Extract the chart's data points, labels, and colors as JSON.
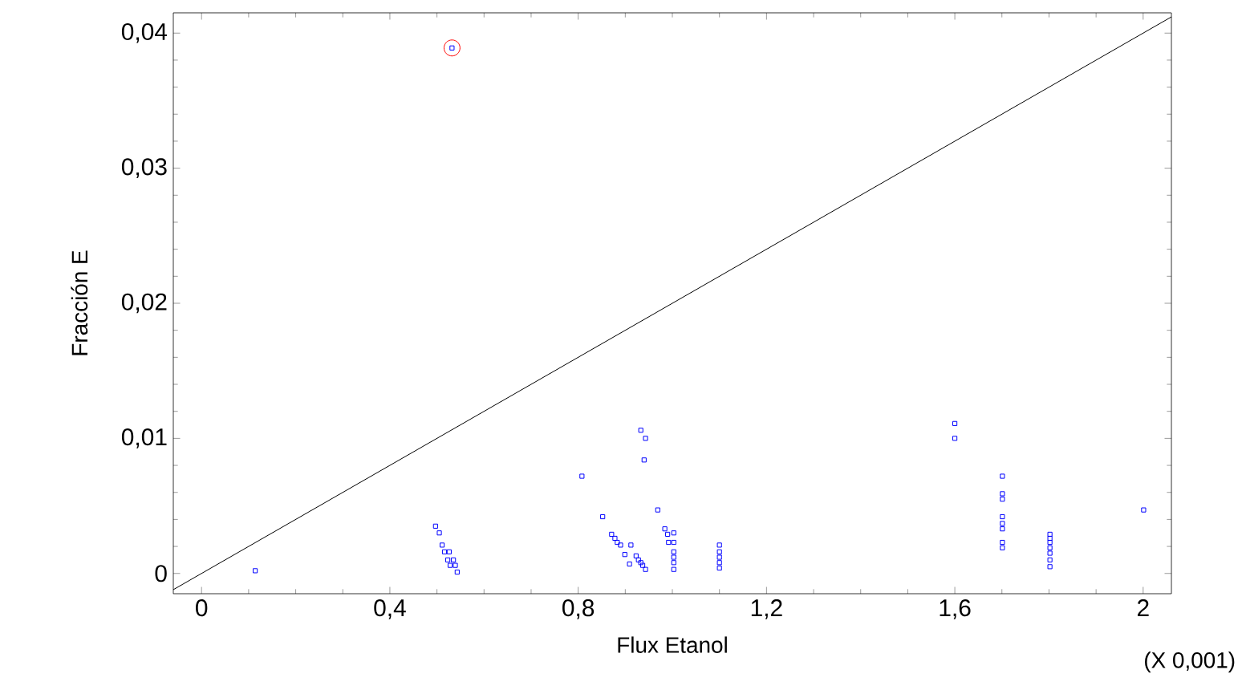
{
  "chart_data": {
    "type": "scatter",
    "xlabel": "Flux Etanol",
    "ylabel": "Fracción E",
    "annotations": [
      "(X 0,001)"
    ],
    "xlim": [
      -0.06,
      2.06
    ],
    "ylim": [
      -0.0015,
      0.0415
    ],
    "xticks": [
      0,
      {
        "value": 0.4,
        "label": "0,4"
      },
      {
        "value": 0.8,
        "label": "0,8"
      },
      {
        "value": 1.2,
        "label": "1,2"
      },
      {
        "value": 1.6,
        "label": "1,6"
      },
      2
    ],
    "yticks": [
      0,
      {
        "value": 0.01,
        "label": "0,01"
      },
      {
        "value": 0.02,
        "label": "0,02"
      },
      {
        "value": 0.03,
        "label": "0,03"
      },
      {
        "value": 0.04,
        "label": "0,04"
      }
    ],
    "grid": false,
    "series": [
      {
        "marker": "square",
        "color": "#0000ff",
        "x": [
          0.532,
          0.114,
          0.497,
          0.505,
          0.511,
          0.516,
          0.526,
          0.523,
          0.535,
          0.528,
          0.539,
          0.543,
          0.933,
          0.943,
          0.94,
          0.808,
          0.852,
          0.969,
          0.871,
          0.878,
          0.883,
          0.89,
          0.912,
          0.899,
          0.909,
          0.923,
          0.928,
          0.933,
          0.937,
          0.943,
          0.984,
          0.99,
          0.992,
          1.003,
          1.003,
          1.003,
          1.003,
          1.003,
          1.003,
          1.1,
          1.1,
          1.1,
          1.1,
          1.1,
          1.6,
          1.6,
          1.701,
          1.701,
          1.701,
          1.701,
          1.701,
          1.701,
          1.701,
          1.701,
          1.802,
          1.802,
          1.802,
          1.802,
          1.802,
          1.802,
          1.802,
          2.001
        ],
        "values": [
          0.0389,
          0.0002,
          0.0035,
          0.003,
          0.0021,
          0.0016,
          0.0016,
          0.001,
          0.001,
          0.0006,
          0.0006,
          0.0001,
          0.0106,
          0.01,
          0.0084,
          0.0072,
          0.0042,
          0.0047,
          0.0029,
          0.0026,
          0.0023,
          0.0021,
          0.0021,
          0.0014,
          0.0007,
          0.0013,
          0.001,
          0.0008,
          0.0006,
          0.0003,
          0.0033,
          0.0029,
          0.0023,
          0.003,
          0.0023,
          0.0016,
          0.0012,
          0.0008,
          0.0003,
          0.0021,
          0.0016,
          0.0012,
          0.0008,
          0.0004,
          0.0111,
          0.01,
          0.0072,
          0.0059,
          0.0055,
          0.0042,
          0.0037,
          0.0033,
          0.0023,
          0.0019,
          0.0029,
          0.0026,
          0.0023,
          0.0019,
          0.0015,
          0.001,
          0.0005,
          0.0047
        ]
      },
      {
        "type": "line",
        "marker": "none",
        "color": "#000000",
        "x": [
          -0.06,
          2.06
        ],
        "values": [
          -0.0012,
          0.0412
        ]
      },
      {
        "marker": "circle",
        "color": "#ff0000",
        "x": [
          0.532
        ],
        "values": [
          0.0389
        ]
      }
    ]
  }
}
